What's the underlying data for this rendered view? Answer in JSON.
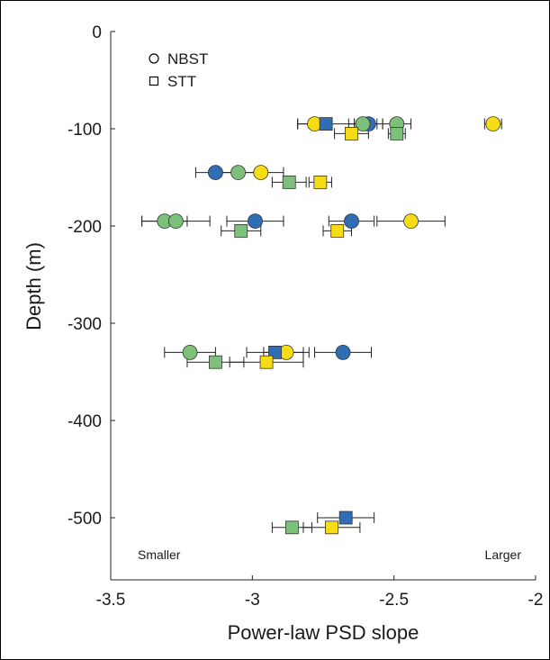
{
  "colors": {
    "blue": "#2f6db5",
    "green": "#7cc07a",
    "yellow": "#f5dc14",
    "errorbar": "#222222"
  },
  "chart_data": {
    "type": "scatter",
    "xlabel": "Power-law PSD slope",
    "ylabel": "Depth (m)",
    "xlim": [
      -3.5,
      -2
    ],
    "ylim": [
      -550,
      0
    ],
    "xticks": [
      -3.5,
      -3,
      -2.5,
      -2
    ],
    "yticks": [
      0,
      -100,
      -200,
      -300,
      -400,
      -500
    ],
    "legend": {
      "placement": "top-left",
      "entries": [
        {
          "label": "NBST",
          "marker": "circle"
        },
        {
          "label": "STT",
          "marker": "square"
        }
      ]
    },
    "annotations": {
      "left": "Smaller",
      "right": "Larger"
    },
    "points": [
      {
        "marker": "circle",
        "color": "green",
        "depth": -95,
        "slope": -2.49,
        "err": 0.05
      },
      {
        "marker": "circle",
        "color": "blue",
        "depth": -95,
        "slope": -2.59,
        "err": 0.05
      },
      {
        "marker": "circle",
        "color": "green",
        "depth": -95,
        "slope": -2.61,
        "err": 0.05
      },
      {
        "marker": "circle",
        "color": "yellow",
        "depth": -95,
        "slope": -2.78,
        "err": 0.06
      },
      {
        "marker": "circle",
        "color": "yellow",
        "depth": -95,
        "slope": -2.15,
        "err": 0.03
      },
      {
        "marker": "square",
        "color": "blue",
        "depth": -95,
        "slope": -2.74,
        "err": 0.1
      },
      {
        "marker": "square",
        "color": "yellow",
        "depth": -105,
        "slope": -2.65,
        "err": 0.06
      },
      {
        "marker": "square",
        "color": "green",
        "depth": -105,
        "slope": -2.49,
        "err": 0.03
      },
      {
        "marker": "circle",
        "color": "blue",
        "depth": -145,
        "slope": -3.13,
        "err": 0.07
      },
      {
        "marker": "circle",
        "color": "green",
        "depth": -145,
        "slope": -3.05,
        "err": 0.07
      },
      {
        "marker": "circle",
        "color": "yellow",
        "depth": -145,
        "slope": -2.97,
        "err": 0.08
      },
      {
        "marker": "square",
        "color": "green",
        "depth": -155,
        "slope": -2.87,
        "err": 0.06
      },
      {
        "marker": "square",
        "color": "yellow",
        "depth": -155,
        "slope": -2.76,
        "err": 0.04
      },
      {
        "marker": "circle",
        "color": "green",
        "depth": -195,
        "slope": -3.31,
        "err": 0.08
      },
      {
        "marker": "circle",
        "color": "green",
        "depth": -195,
        "slope": -3.27,
        "err": 0.12
      },
      {
        "marker": "circle",
        "color": "blue",
        "depth": -195,
        "slope": -2.99,
        "err": 0.1
      },
      {
        "marker": "circle",
        "color": "blue",
        "depth": -195,
        "slope": -2.65,
        "err": 0.08
      },
      {
        "marker": "circle",
        "color": "yellow",
        "depth": -195,
        "slope": -2.44,
        "err": 0.12
      },
      {
        "marker": "square",
        "color": "green",
        "depth": -205,
        "slope": -3.04,
        "err": 0.07
      },
      {
        "marker": "square",
        "color": "yellow",
        "depth": -205,
        "slope": -2.7,
        "err": 0.05
      },
      {
        "marker": "circle",
        "color": "green",
        "depth": -330,
        "slope": -3.22,
        "err": 0.09
      },
      {
        "marker": "circle",
        "color": "blue",
        "depth": -330,
        "slope": -2.68,
        "err": 0.1
      },
      {
        "marker": "circle",
        "color": "yellow",
        "depth": -330,
        "slope": -2.88,
        "err": 0.08
      },
      {
        "marker": "square",
        "color": "blue",
        "depth": -330,
        "slope": -2.92,
        "err": 0.1
      },
      {
        "marker": "square",
        "color": "green",
        "depth": -340,
        "slope": -3.13,
        "err": 0.1
      },
      {
        "marker": "square",
        "color": "yellow",
        "depth": -340,
        "slope": -2.95,
        "err": 0.13
      },
      {
        "marker": "square",
        "color": "blue",
        "depth": -500,
        "slope": -2.67,
        "err": 0.1
      },
      {
        "marker": "square",
        "color": "green",
        "depth": -510,
        "slope": -2.86,
        "err": 0.07
      },
      {
        "marker": "square",
        "color": "yellow",
        "depth": -510,
        "slope": -2.72,
        "err": 0.1
      }
    ]
  }
}
